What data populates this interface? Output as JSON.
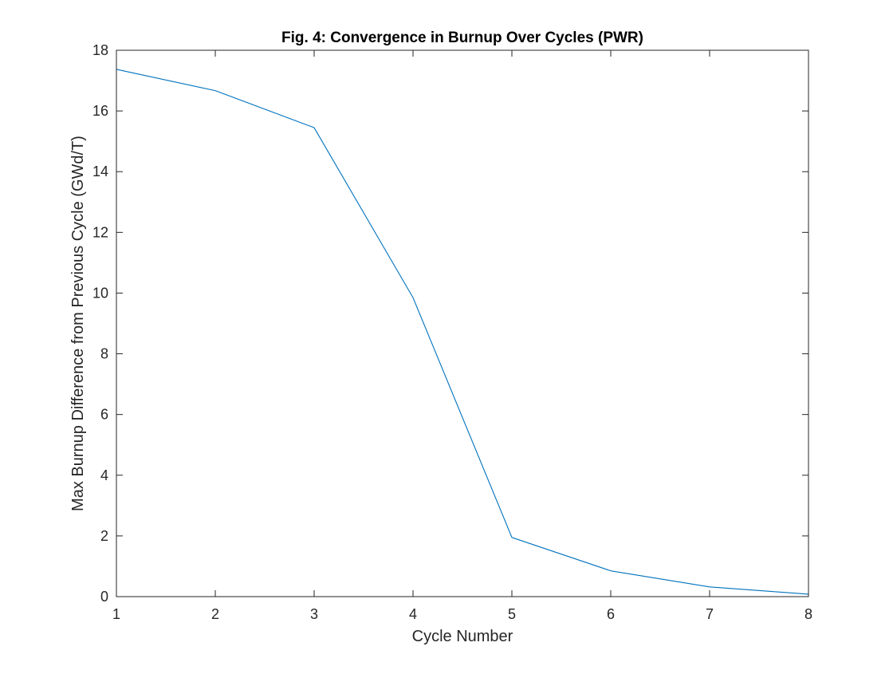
{
  "chart_data": {
    "type": "line",
    "title": "Fig. 4: Convergence in Burnup Over Cycles (PWR)",
    "xlabel": "Cycle Number",
    "ylabel": "Max Burnup Difference from Previous Cycle (GWd/T)",
    "xlim": [
      1,
      8
    ],
    "ylim": [
      0,
      18
    ],
    "x_ticks": [
      "1",
      "2",
      "3",
      "4",
      "5",
      "6",
      "7",
      "8"
    ],
    "y_ticks": [
      "0",
      "2",
      "4",
      "6",
      "8",
      "10",
      "12",
      "14",
      "16",
      "18"
    ],
    "grid": false,
    "box": true,
    "series": [
      {
        "color": "#0072BD",
        "x": [
          1,
          2,
          3,
          4,
          5,
          6,
          7,
          8
        ],
        "y": [
          17.37,
          16.67,
          15.45,
          9.85,
          1.95,
          0.85,
          0.32,
          0.08
        ]
      }
    ]
  }
}
